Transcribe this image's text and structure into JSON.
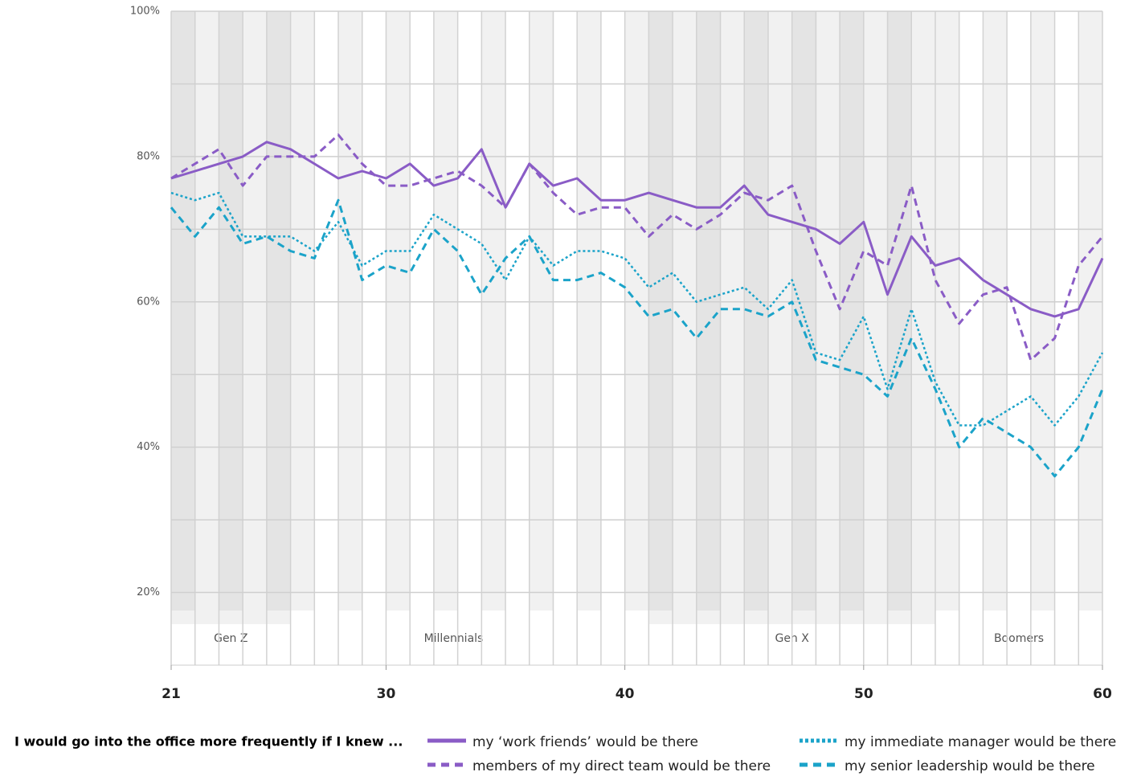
{
  "chart_data": {
    "type": "line",
    "x": [
      21,
      22,
      23,
      24,
      25,
      26,
      27,
      28,
      29,
      30,
      31,
      32,
      33,
      34,
      35,
      36,
      37,
      38,
      39,
      40,
      41,
      42,
      43,
      44,
      45,
      46,
      47,
      48,
      49,
      50,
      51,
      52,
      53,
      54,
      55,
      56,
      57,
      58,
      59,
      60
    ],
    "xlim": [
      21,
      60
    ],
    "xticks": [
      21,
      30,
      40,
      50,
      60
    ],
    "ylim": [
      10,
      100
    ],
    "yticks": [
      {
        "value": 20,
        "label": "20%"
      },
      {
        "value": 30,
        "label": null
      },
      {
        "value": 40,
        "label": "40%"
      },
      {
        "value": 50,
        "label": null
      },
      {
        "value": 60,
        "label": "60%"
      },
      {
        "value": 70,
        "label": null
      },
      {
        "value": 80,
        "label": "80%"
      },
      {
        "value": 90,
        "label": null
      },
      {
        "value": 100,
        "label": "100%"
      }
    ],
    "grid": true,
    "generations": [
      {
        "name": "Gen Z",
        "from": 21,
        "to": 26,
        "shade": "dark"
      },
      {
        "name": "Millennials",
        "from": 26,
        "to": 41,
        "shade": "light"
      },
      {
        "name": "Gen X",
        "from": 41,
        "to": 53,
        "shade": "dark"
      },
      {
        "name": "Boomers",
        "from": 53,
        "to": 60,
        "shade": "light"
      }
    ],
    "legend_title": "I would go into the office more frequently if I knew ...",
    "series": [
      {
        "name": "my ‘work friends’ would be there",
        "color": "#8a5cc6",
        "line_style": "solid",
        "values": [
          77,
          78,
          79,
          80,
          82,
          81,
          79,
          77,
          78,
          77,
          79,
          76,
          77,
          81,
          73,
          79,
          76,
          77,
          74,
          74,
          75,
          74,
          73,
          73,
          76,
          72,
          71,
          70,
          68,
          71,
          61,
          69,
          65,
          66,
          63,
          61,
          59,
          58,
          59,
          66
        ]
      },
      {
        "name": "members of my direct team would be there",
        "color": "#8a5cc6",
        "line_style": "dashed",
        "values": [
          77,
          79,
          81,
          76,
          80,
          80,
          80,
          83,
          79,
          76,
          76,
          77,
          78,
          76,
          73,
          79,
          75,
          72,
          73,
          73,
          69,
          72,
          70,
          72,
          75,
          74,
          76,
          67,
          59,
          67,
          65,
          76,
          63,
          57,
          61,
          62,
          52,
          55,
          65,
          69
        ]
      },
      {
        "name": "my immediate manager would be there",
        "color": "#1ba3c9",
        "line_style": "dotted",
        "values": [
          75,
          74,
          75,
          69,
          69,
          69,
          67,
          71,
          65,
          67,
          67,
          72,
          70,
          68,
          63,
          69,
          65,
          67,
          67,
          66,
          62,
          64,
          60,
          61,
          62,
          59,
          63,
          53,
          52,
          58,
          48,
          59,
          49,
          43,
          43,
          45,
          47,
          43,
          47,
          53
        ]
      },
      {
        "name": "my senior leadership would be there",
        "color": "#1ba3c9",
        "line_style": "dashed",
        "values": [
          73,
          69,
          73,
          68,
          69,
          67,
          66,
          74,
          63,
          65,
          64,
          70,
          67,
          61,
          66,
          69,
          63,
          63,
          64,
          62,
          58,
          59,
          55,
          59,
          59,
          58,
          60,
          52,
          51,
          50,
          47,
          55,
          48,
          40,
          44,
          42,
          40,
          36,
          40,
          48
        ]
      }
    ]
  }
}
